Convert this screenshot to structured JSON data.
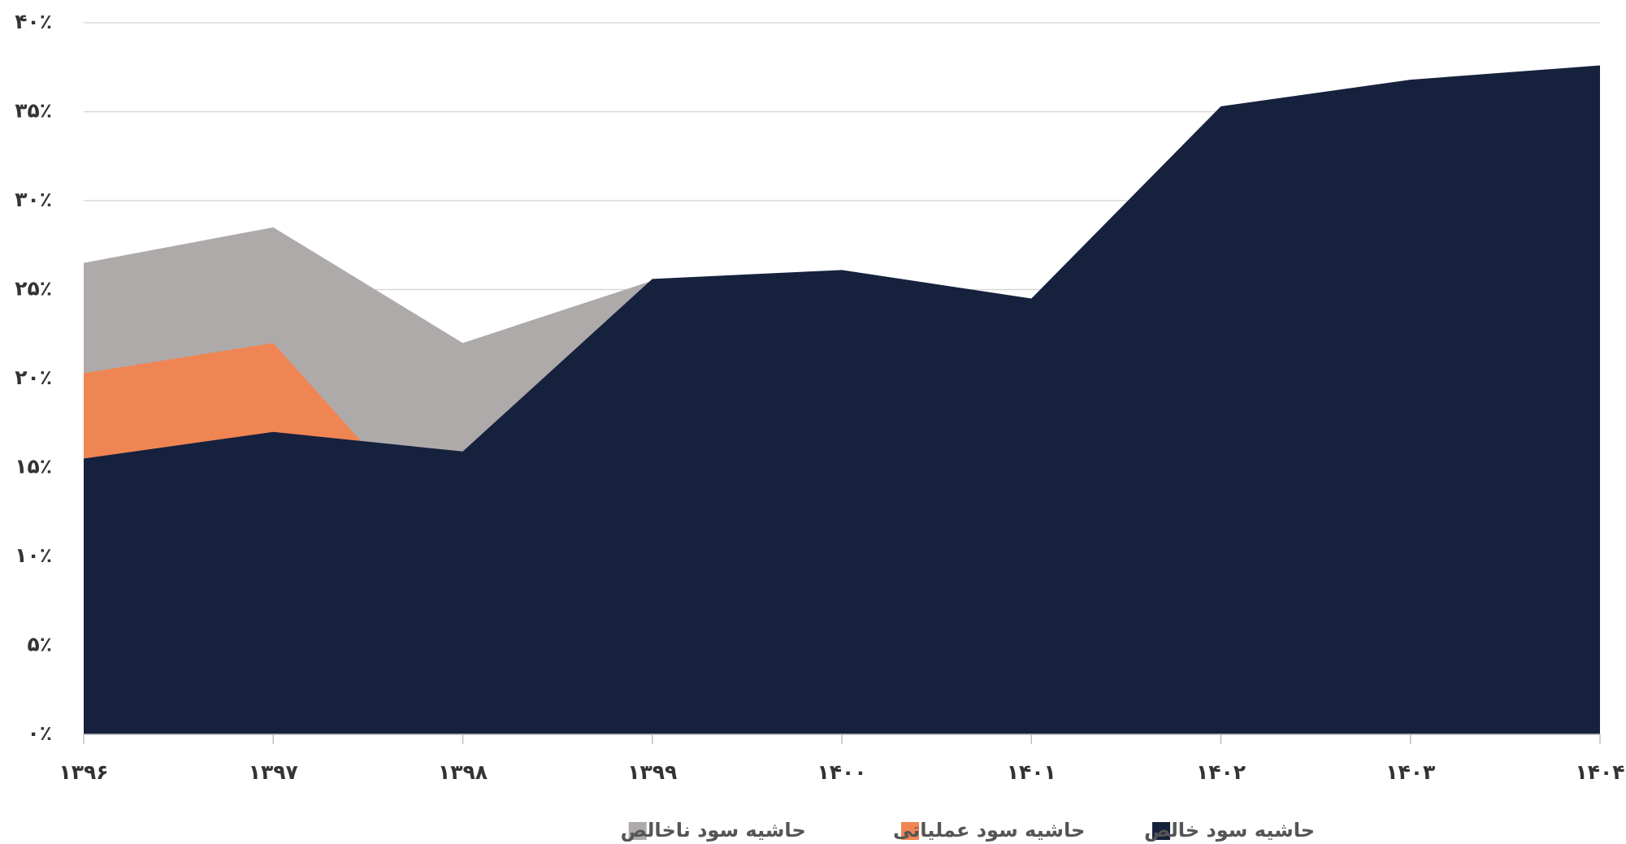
{
  "chart_data": {
    "type": "area",
    "categories": [
      "۱۳۹۶",
      "۱۳۹۷",
      "۱۳۹۸",
      "۱۳۹۹",
      "۱۴۰۰",
      "۱۴۰۱",
      "۱۴۰۲",
      "۱۴۰۳",
      "۱۴۰۴"
    ],
    "series": [
      {
        "name": "حاشیه سود ناخالص",
        "color": "#aeaaaa",
        "values": [
          26.5,
          28.5,
          22.0,
          25.5,
          25,
          24,
          34,
          36,
          37
        ]
      },
      {
        "name": "حاشیه سود عملیاتی",
        "color": "#f08554",
        "values": [
          20.3,
          22.0,
          10.1,
          20,
          21,
          20,
          30,
          32,
          33
        ]
      },
      {
        "name": "حاشیه سود خالص",
        "color": "#15213d",
        "values": [
          15.5,
          17.0,
          15.9,
          25.6,
          26.1,
          24.5,
          35.3,
          36.8,
          37.6
        ]
      }
    ],
    "ylim": [
      0,
      40
    ],
    "yticks": [
      {
        "value": 0,
        "label": "۰٪"
      },
      {
        "value": 5,
        "label": "۵٪"
      },
      {
        "value": 10,
        "label": "۱۰٪"
      },
      {
        "value": 15,
        "label": "۱۵٪"
      },
      {
        "value": 20,
        "label": "۲۰٪"
      },
      {
        "value": 25,
        "label": "۲۵٪"
      },
      {
        "value": 30,
        "label": "۳۰٪"
      },
      {
        "value": 35,
        "label": "۳۵٪"
      },
      {
        "value": 40,
        "label": "۴۰٪"
      }
    ],
    "grid": true
  }
}
